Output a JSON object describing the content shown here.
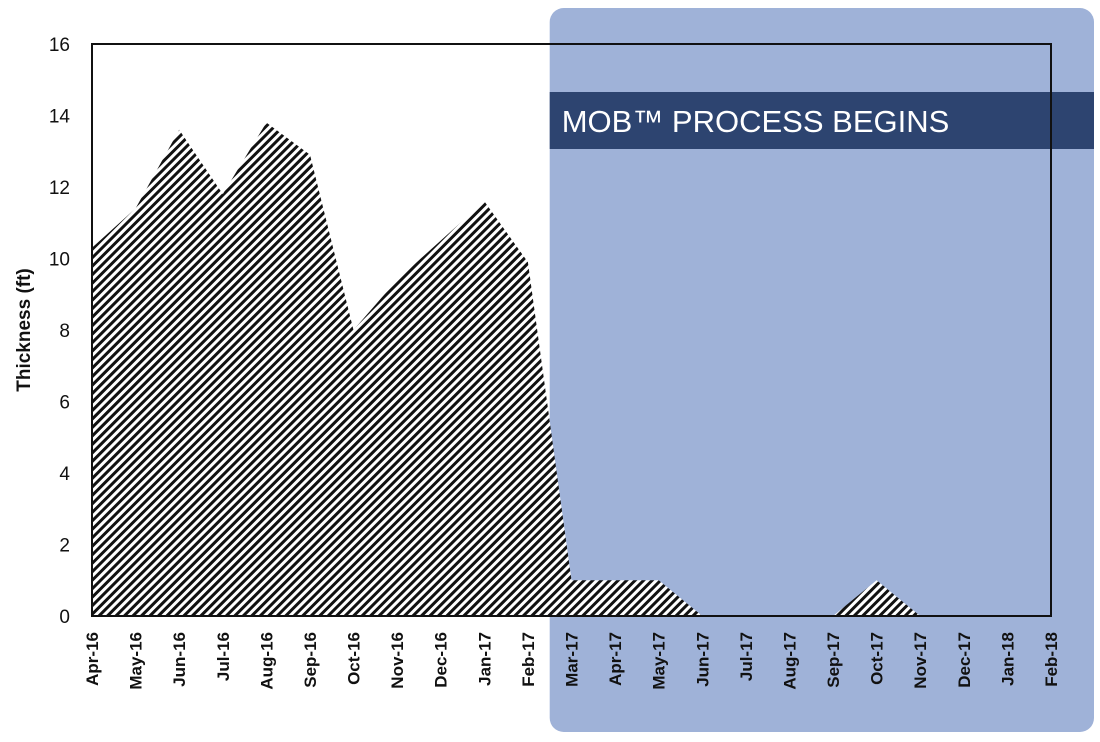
{
  "chart_data": {
    "type": "area",
    "ylabel": "Thickness (ft)",
    "xlabel": "",
    "ylim": [
      0,
      16
    ],
    "yticks": [
      0,
      2,
      4,
      6,
      8,
      10,
      12,
      14,
      16
    ],
    "categories": [
      "Apr-16",
      "May-16",
      "Jun-16",
      "Jul-16",
      "Aug-16",
      "Sep-16",
      "Oct-16",
      "Nov-16",
      "Dec-16",
      "Jan-17",
      "Feb-17",
      "Mar-17",
      "Apr-17",
      "May-17",
      "Jun-17",
      "Jul-17",
      "Aug-17",
      "Sep-17",
      "Oct-17",
      "Nov-17",
      "Dec-17",
      "Jan-18",
      "Feb-18"
    ],
    "values": [
      10.3,
      11.4,
      13.6,
      11.8,
      13.8,
      12.9,
      8.0,
      9.4,
      10.5,
      11.6,
      9.9,
      1.0,
      1.0,
      1.0,
      0,
      0,
      0,
      0,
      1.0,
      0,
      0,
      0,
      0
    ],
    "grid": false,
    "fill_pattern": "diagonal-hatch",
    "highlight_region": {
      "from_category": "Mar-17",
      "to_category": "Feb-18",
      "label": "MOB™ PROCESS BEGINS",
      "fill_color": "#9fb2d8",
      "label_band_color": "#2d4470"
    }
  }
}
